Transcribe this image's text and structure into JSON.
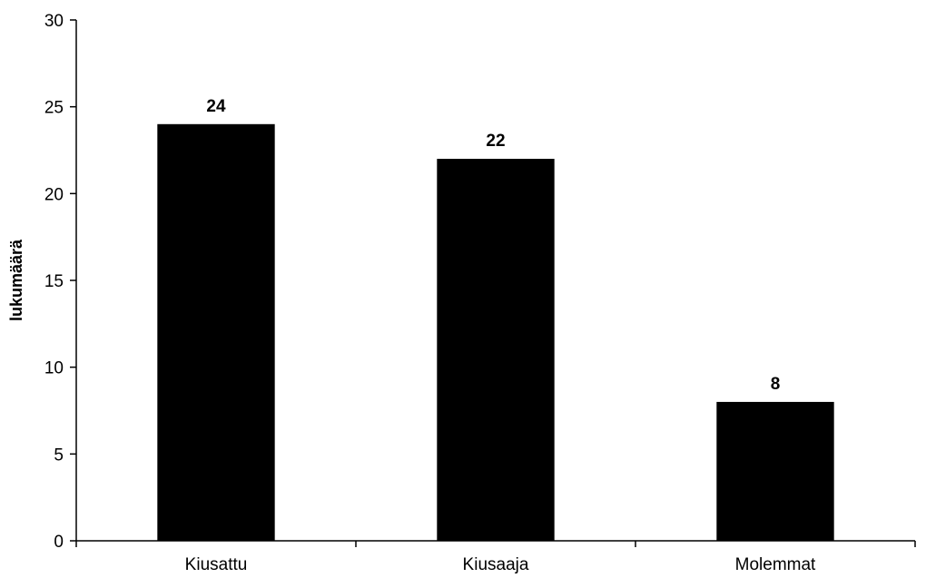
{
  "chart_data": {
    "type": "bar",
    "categories": [
      "Kiusattu",
      "Kiusaaja",
      "Molemmat"
    ],
    "values": [
      24,
      22,
      8
    ],
    "data_labels": [
      "24",
      "22",
      "8"
    ],
    "ylabel": "lukumäärä",
    "xlabel": "",
    "ylim": [
      0,
      30
    ],
    "yticks": [
      "0",
      "5",
      "10",
      "15",
      "20",
      "25",
      "30"
    ],
    "grid": false,
    "legend": "none",
    "bar_color": "#000000"
  }
}
